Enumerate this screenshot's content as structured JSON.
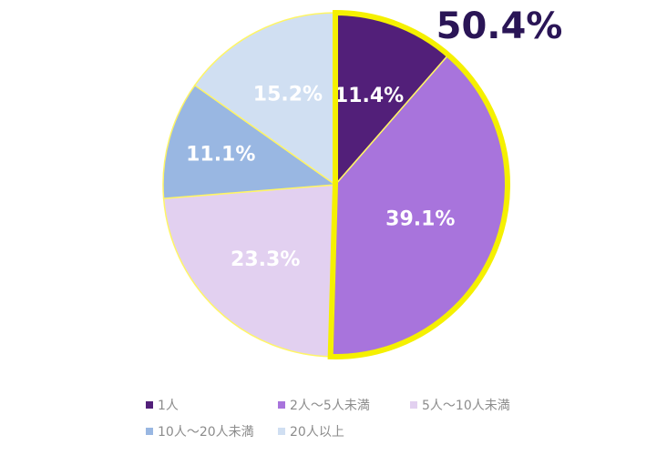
{
  "chart_data": {
    "type": "pie",
    "title": "",
    "categories": [
      "1人",
      "2人～5人未満",
      "5人～10人未満",
      "10人～20人未満",
      "20人以上"
    ],
    "values": [
      11.4,
      39.1,
      23.3,
      11.1,
      15.2
    ],
    "labels": [
      "11.4%",
      "39.1%",
      "23.3%",
      "11.1%",
      "15.2%"
    ],
    "colors": [
      "#521f79",
      "#a874dc",
      "#e2d0f0",
      "#99b7e2",
      "#d0dff2"
    ],
    "highlight": {
      "categories": [
        "1人",
        "2人～5人未満"
      ],
      "outline_color": "#f5f000",
      "callout": "50.4%",
      "callout_color": "#2a1556"
    },
    "legend_position": "bottom"
  }
}
